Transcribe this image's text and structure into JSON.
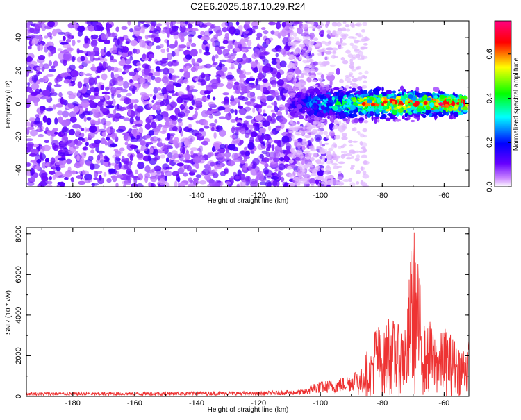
{
  "title": "C2E6.2025.187.10.29.R24",
  "chart_data": [
    {
      "type": "heatmap",
      "title": "C2E6.2025.187.10.29.R24",
      "xlabel": "Height of straight line (km)",
      "ylabel": "Frequency (Hz)",
      "xlim": [
        -195,
        -52
      ],
      "ylim": [
        -50,
        50
      ],
      "xticks": [
        -180,
        -160,
        -140,
        -120,
        -100,
        -80,
        -60
      ],
      "yticks": [
        -40,
        -20,
        0,
        20,
        40
      ],
      "colorbar": {
        "label": "Normalized spectral amplitude",
        "range": [
          0.0,
          0.75
        ],
        "ticks": [
          0.0,
          0.2,
          0.4,
          0.6
        ],
        "colormap": [
          "#ffffff",
          "#cc88ff",
          "#6600ff",
          "#0000ff",
          "#00ffff",
          "#00ff00",
          "#ffff00",
          "#ff0000",
          "#ff0080"
        ]
      },
      "features": [
        {
          "description": "scattered low-amplitude purple speckle",
          "x_range": [
            -195,
            -92
          ],
          "y_range": [
            -50,
            50
          ],
          "amplitude": 0.1
        },
        {
          "description": "narrow high-amplitude band near 0 Hz",
          "x_range": [
            -110,
            -53
          ],
          "center_frequency": 0,
          "half_width": 4,
          "max_amplitude": 0.75
        }
      ]
    },
    {
      "type": "line",
      "xlabel": "Height of straight line (km)",
      "ylabel": "SNR (10 * v/v)",
      "xlim": [
        -195,
        -52
      ],
      "ylim": [
        0,
        8300
      ],
      "xticks": [
        -180,
        -160,
        -140,
        -120,
        -100,
        -80,
        -60
      ],
      "yticks": [
        0,
        2000,
        4000,
        6000,
        8000
      ],
      "series": [
        {
          "color": "#ee3333",
          "x": [
            -195,
            -180,
            -160,
            -140,
            -120,
            -105,
            -102,
            -95,
            -90,
            -87,
            -85,
            -84,
            -82,
            -80,
            -79,
            -78,
            -76,
            -74,
            -72,
            -71,
            -70,
            -69,
            -68,
            -67,
            -66,
            -65,
            -64,
            -62,
            -60,
            -58,
            -56,
            -54,
            -52
          ],
          "y": [
            150,
            150,
            150,
            180,
            170,
            250,
            500,
            600,
            800,
            1200,
            2200,
            1800,
            3800,
            2800,
            3200,
            4000,
            3500,
            3300,
            3700,
            6500,
            8300,
            7000,
            5800,
            4200,
            3000,
            3900,
            3200,
            2800,
            3300,
            3000,
            2600,
            2400,
            2700
          ]
        }
      ]
    }
  ]
}
